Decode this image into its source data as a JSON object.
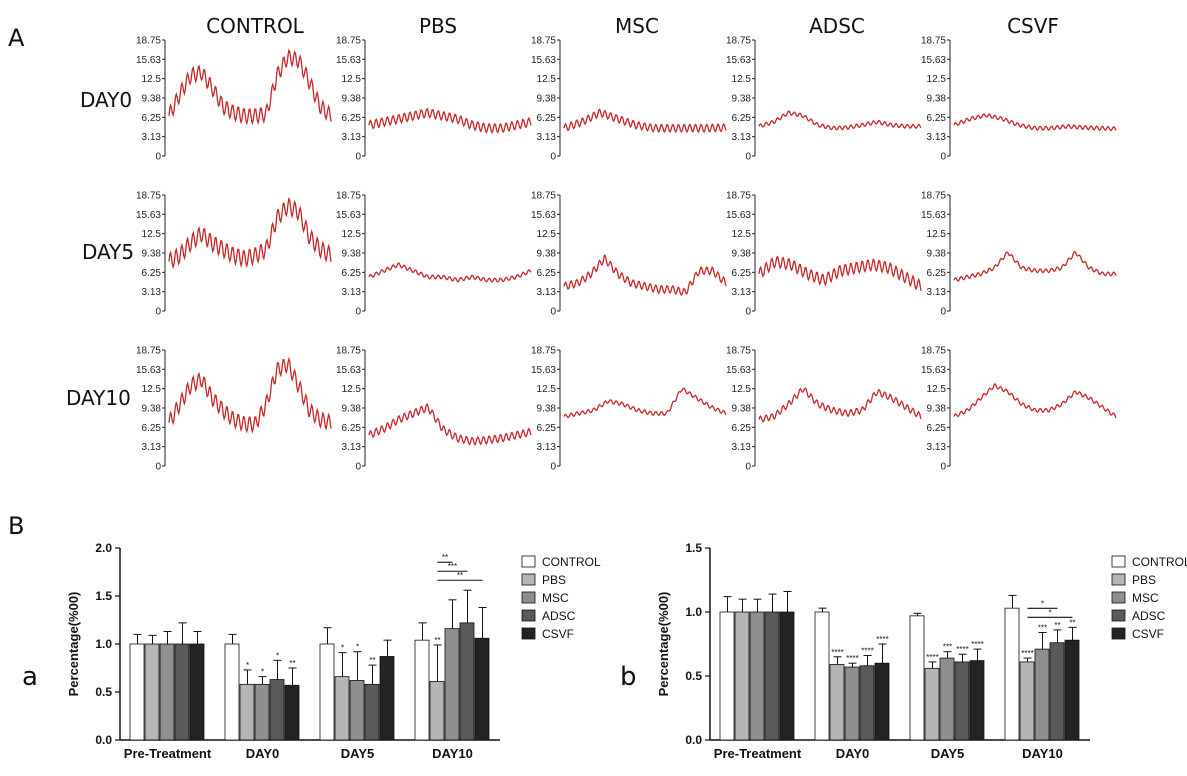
{
  "figure": {
    "panel_a_letter": "A",
    "panel_b_letter": "B",
    "subpanel_a_letter": "a",
    "subpanel_b_letter": "b"
  },
  "chart_data": [
    {
      "type": "line",
      "panel": "A",
      "columns": [
        "CONTROL",
        "PBS",
        "MSC",
        "ADSC",
        "CSVF"
      ],
      "rows": [
        "DAY0",
        "DAY5",
        "DAY10"
      ],
      "yticks": [
        "0",
        "3.13",
        "6.25",
        "9.38",
        "12.5",
        "15.63",
        "18.75"
      ],
      "ylim": [
        0,
        18.75
      ],
      "line_color": "#c62828",
      "traces": [
        [
          {
            "base": [
              6.5,
              10,
              13,
              13.5,
              11,
              8,
              7,
              6.5,
              6.5,
              6.8,
              13,
              16,
              15.5,
              12,
              8,
              6.5
            ],
            "ripple": 1.2
          },
          {
            "base": [
              5,
              5.5,
              6,
              6.5,
              7,
              6.5,
              6,
              5,
              4.5,
              4.5,
              5,
              5.5
            ],
            "ripple": 0.7
          },
          {
            "base": [
              4.5,
              5.5,
              7,
              6,
              5,
              4.5,
              4.5,
              4.5,
              4.5,
              4.6
            ],
            "ripple": 0.6
          },
          {
            "base": [
              4.8,
              5.5,
              7,
              6.5,
              5,
              4.5,
              4.6,
              5,
              5.5,
              5,
              4.8,
              4.8
            ],
            "ripple": 0.3
          },
          {
            "base": [
              5,
              6,
              6.6,
              6,
              5,
              4.5,
              4.5,
              4.8,
              4.6,
              4.5,
              4.4
            ],
            "ripple": 0.3
          }
        ],
        [
          {
            "base": [
              8,
              9,
              11,
              12.5,
              11,
              10,
              9,
              8.5,
              9,
              10,
              15,
              17,
              16,
              12,
              10,
              9
            ],
            "ripple": 1.3
          },
          {
            "base": [
              5.5,
              6.5,
              7.5,
              6.5,
              5.5,
              5.5,
              5,
              5.5,
              5,
              5,
              5.5,
              6.5
            ],
            "ripple": 0.3
          },
          {
            "base": [
              4,
              4.5,
              6,
              8.5,
              6,
              4.5,
              4,
              3.5,
              3.5,
              3,
              6.5,
              6.5,
              4.5
            ],
            "ripple": 0.6
          },
          {
            "base": [
              6,
              8,
              7.5,
              6,
              5,
              6.5,
              7,
              7.5,
              7,
              5.5,
              4
            ],
            "ripple": 0.9
          },
          {
            "base": [
              5,
              5.5,
              6,
              7,
              9.5,
              7,
              6.5,
              6.5,
              7,
              9.5,
              7,
              6,
              6
            ],
            "ripple": 0.3
          }
        ],
        [
          {
            "base": [
              7,
              10,
              13,
              14,
              11,
              9,
              7.5,
              6.8,
              6.8,
              10,
              15.5,
              16.5,
              13,
              9,
              7.5,
              7
            ],
            "ripple": 1.2
          },
          {
            "base": [
              5,
              6,
              7.5,
              8.5,
              9.5,
              6,
              4.5,
              4,
              4.2,
              4.5,
              5,
              5.5
            ],
            "ripple": 0.6
          },
          {
            "base": [
              8,
              8.5,
              9,
              10.5,
              10,
              9,
              8.5,
              8.5,
              12.5,
              11,
              9.5,
              8.5
            ],
            "ripple": 0.3
          },
          {
            "base": [
              7.5,
              8,
              10,
              12.5,
              10,
              9,
              8.5,
              9,
              12,
              11,
              9.5,
              8
            ],
            "ripple": 0.5
          },
          {
            "base": [
              8,
              9,
              11,
              13,
              12,
              10,
              9,
              9,
              10,
              12,
              11,
              9.5,
              8
            ],
            "ripple": 0.3
          }
        ]
      ]
    },
    {
      "type": "bar",
      "panel": "B-a",
      "ylabel": "Percentage(%00)",
      "ylim": [
        0,
        2.0
      ],
      "yticks": [
        "0.0",
        "0.5",
        "1.0",
        "1.5",
        "2.0"
      ],
      "categories": [
        "Pre-Treatment",
        "DAY0",
        "DAY5",
        "DAY10"
      ],
      "series": [
        {
          "name": "CONTROL",
          "color": "#ffffff",
          "values": [
            1.0,
            1.0,
            1.0,
            1.04
          ],
          "errors": [
            0.1,
            0.1,
            0.17,
            0.18
          ],
          "stars": [
            "",
            "",
            "",
            ""
          ]
        },
        {
          "name": "PBS",
          "color": "#b5b5b5",
          "values": [
            1.0,
            0.58,
            0.66,
            0.61
          ],
          "errors": [
            0.09,
            0.15,
            0.25,
            0.38
          ],
          "stars": [
            "",
            "*",
            "*",
            "**"
          ]
        },
        {
          "name": "MSC",
          "color": "#8f8f8f",
          "values": [
            1.0,
            0.58,
            0.62,
            1.16
          ],
          "errors": [
            0.13,
            0.08,
            0.3,
            0.3
          ],
          "stars": [
            "",
            "*",
            "*",
            ""
          ]
        },
        {
          "name": "ADSC",
          "color": "#5a5a5a",
          "values": [
            1.0,
            0.63,
            0.58,
            1.22
          ],
          "errors": [
            0.22,
            0.2,
            0.2,
            0.34
          ],
          "stars": [
            "",
            "*",
            "**",
            ""
          ]
        },
        {
          "name": "CSVF",
          "color": "#232323",
          "values": [
            1.0,
            0.57,
            0.87,
            1.06
          ],
          "errors": [
            0.13,
            0.18,
            0.17,
            0.32
          ],
          "stars": [
            "",
            "**",
            "",
            ""
          ]
        }
      ],
      "brackets": [
        {
          "group": "DAY10",
          "from": "PBS",
          "to": "MSC",
          "label": "**"
        },
        {
          "group": "DAY10",
          "from": "PBS",
          "to": "ADSC",
          "label": "***"
        },
        {
          "group": "DAY10",
          "from": "PBS",
          "to": "CSVF",
          "label": "**"
        }
      ]
    },
    {
      "type": "bar",
      "panel": "B-b",
      "ylabel": "Percentage(%00)",
      "ylim": [
        0,
        1.5
      ],
      "yticks": [
        "0.0",
        "0.5",
        "1.0",
        "1.5"
      ],
      "categories": [
        "Pre-Treatment",
        "DAY0",
        "DAY5",
        "DAY10"
      ],
      "series": [
        {
          "name": "CONTROL",
          "color": "#ffffff",
          "values": [
            1.0,
            1.0,
            0.97,
            1.03
          ],
          "errors": [
            0.12,
            0.03,
            0.02,
            0.1
          ],
          "stars": [
            "",
            "",
            "",
            ""
          ]
        },
        {
          "name": "PBS",
          "color": "#b5b5b5",
          "values": [
            1.0,
            0.59,
            0.56,
            0.61
          ],
          "errors": [
            0.1,
            0.06,
            0.05,
            0.03
          ],
          "stars": [
            "",
            "****",
            "****",
            "****"
          ]
        },
        {
          "name": "MSC",
          "color": "#8f8f8f",
          "values": [
            1.0,
            0.57,
            0.64,
            0.71
          ],
          "errors": [
            0.1,
            0.03,
            0.05,
            0.13
          ],
          "stars": [
            "",
            "****",
            "***",
            "***"
          ]
        },
        {
          "name": "ADSC",
          "color": "#5a5a5a",
          "values": [
            1.0,
            0.58,
            0.61,
            0.76
          ],
          "errors": [
            0.14,
            0.08,
            0.06,
            0.1
          ],
          "stars": [
            "",
            "****",
            "****",
            "**"
          ]
        },
        {
          "name": "CSVF",
          "color": "#232323",
          "values": [
            1.0,
            0.6,
            0.62,
            0.78
          ],
          "errors": [
            0.16,
            0.15,
            0.09,
            0.1
          ],
          "stars": [
            "",
            "****",
            "****",
            "**"
          ]
        }
      ],
      "brackets": [
        {
          "group": "DAY10",
          "from": "PBS",
          "to": "ADSC",
          "label": "*"
        },
        {
          "group": "DAY10",
          "from": "PBS",
          "to": "CSVF",
          "label": "*"
        }
      ]
    }
  ]
}
